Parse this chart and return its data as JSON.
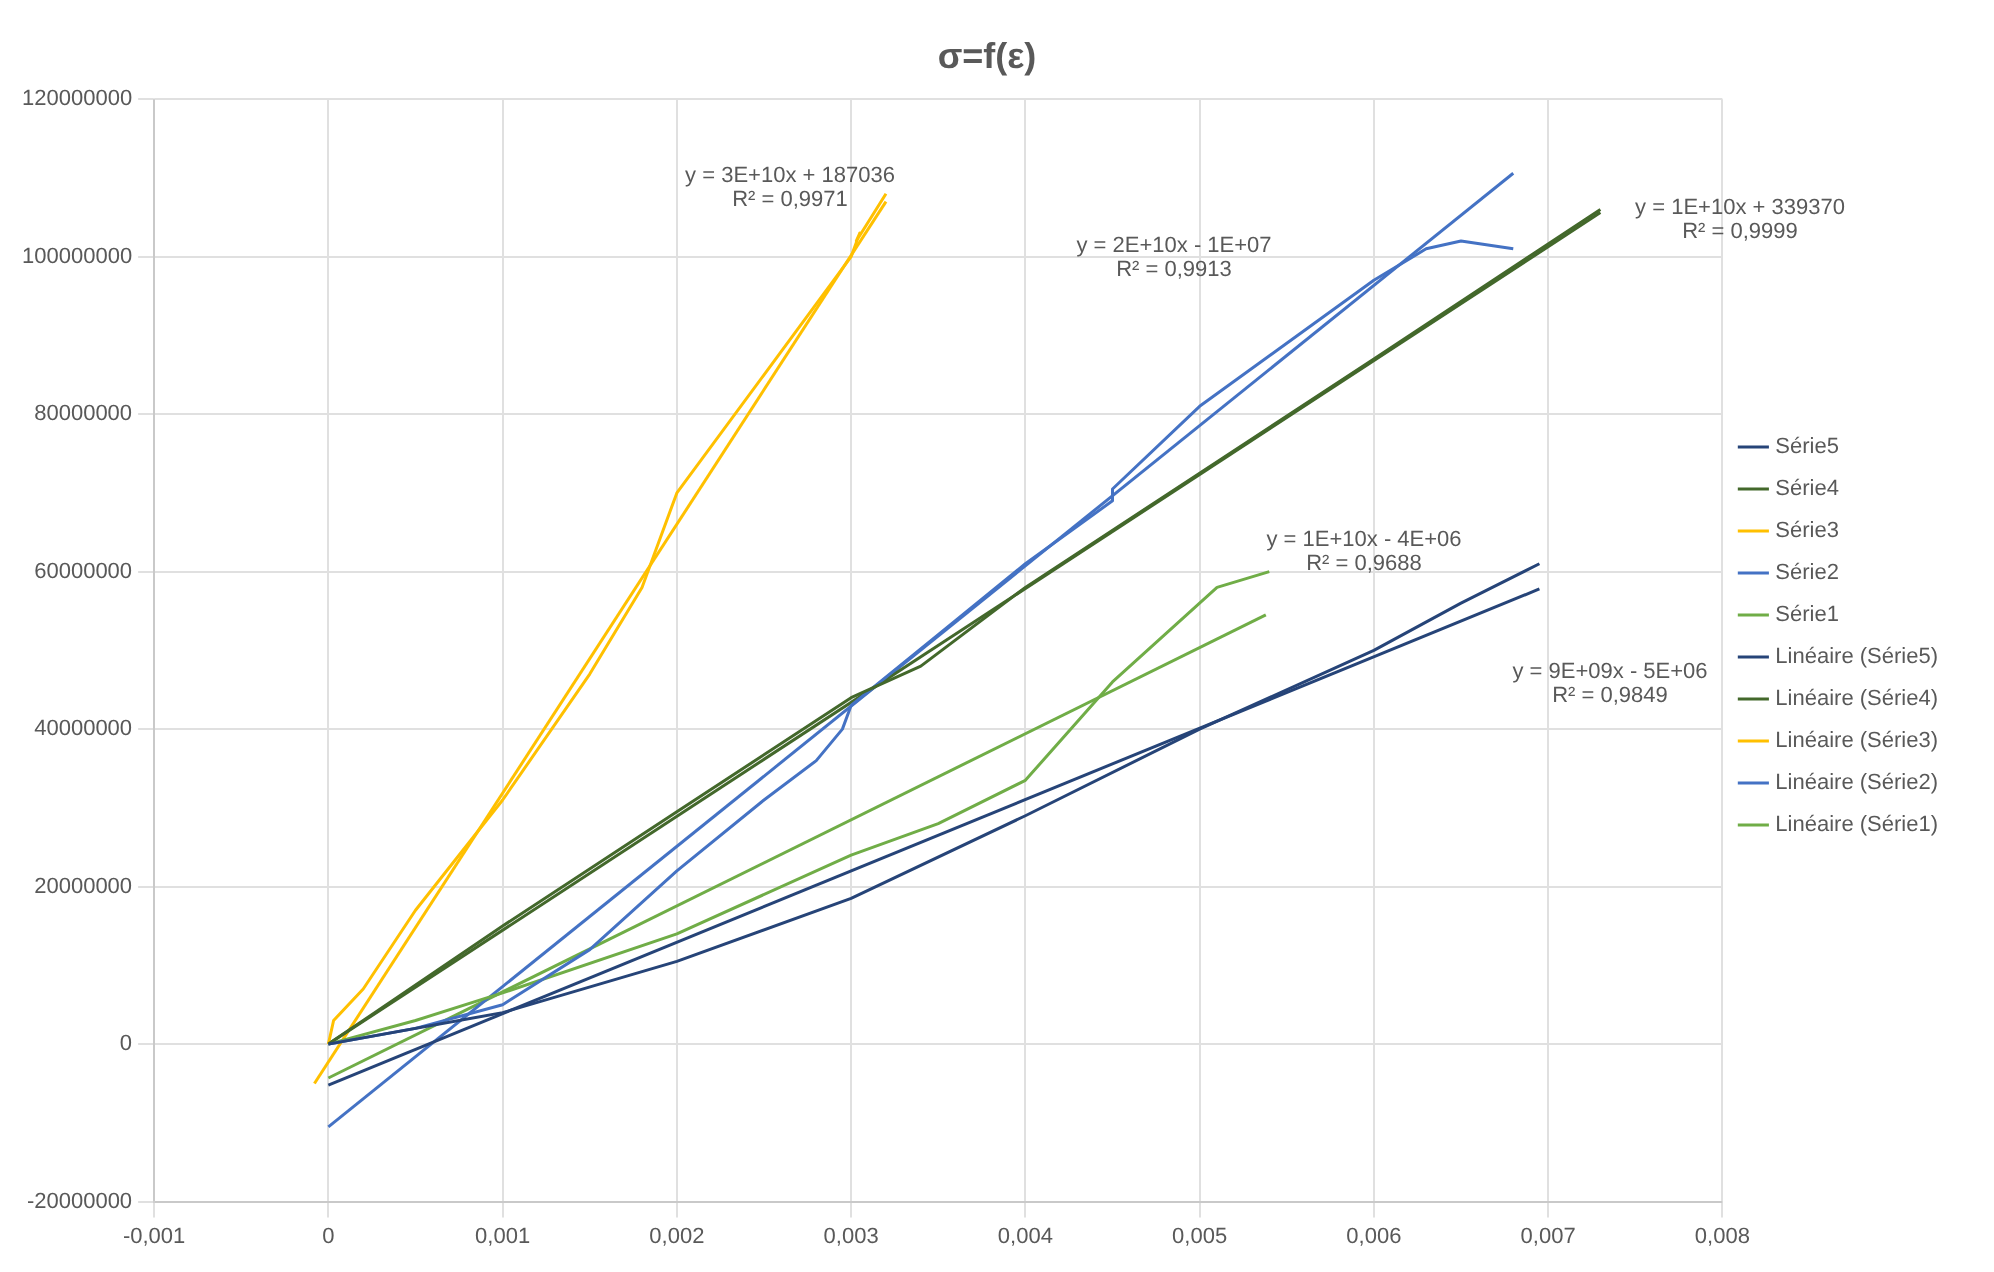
{
  "chart_data": {
    "type": "line",
    "title": "σ=f(ε)",
    "xlim": [
      -0.001,
      0.008
    ],
    "xticks": [
      {
        "value": -0.001,
        "label": "-0,001"
      },
      0,
      {
        "value": 0.001,
        "label": "0,001"
      },
      {
        "value": 0.002,
        "label": "0,002"
      },
      {
        "value": 0.003,
        "label": "0,003"
      },
      {
        "value": 0.004,
        "label": "0,004"
      },
      {
        "value": 0.005,
        "label": "0,005"
      },
      {
        "value": 0.006,
        "label": "0,006"
      },
      {
        "value": 0.007,
        "label": "0,007"
      },
      {
        "value": 0.008,
        "label": "0,008"
      }
    ],
    "ylim": [
      -20000000,
      120000000
    ],
    "yticks": [
      -20000000,
      0,
      20000000,
      40000000,
      60000000,
      80000000,
      100000000,
      120000000
    ],
    "grid": true,
    "legend": "right",
    "marker": "none",
    "line_style": "solid",
    "series": [
      {
        "name": "Série5",
        "color": "#264478",
        "x": [
          0,
          0.001,
          0.002,
          0.003,
          0.004,
          0.005,
          0.006,
          0.0065,
          0.00695
        ],
        "values": [
          0,
          4000000,
          10500000,
          18500000,
          29000000,
          40000000,
          50000000,
          56000000,
          61000000
        ]
      },
      {
        "name": "Série4",
        "color": "#43682b",
        "x": [
          0,
          0.001,
          0.002,
          0.003,
          0.0034,
          0.004,
          0.005,
          0.006,
          0.0073
        ],
        "values": [
          0,
          15000000,
          29500000,
          44000000,
          48000000,
          58000000,
          72500000,
          87000000,
          106000000
        ]
      },
      {
        "name": "Série3",
        "color": "#ffc000",
        "x": [
          0,
          3e-05,
          0.0002,
          0.0005,
          0.001,
          0.0015,
          0.0018,
          0.002,
          0.0025,
          0.003,
          0.00305,
          0.00303,
          0.0032
        ],
        "values": [
          0,
          3000000,
          7000000,
          17000000,
          31000000,
          47000000,
          58000000,
          70000000,
          85000000,
          100000000,
          103000000,
          102000000,
          108000000
        ]
      },
      {
        "name": "Série2",
        "color": "#4472c4",
        "x": [
          0,
          0.0005,
          0.001,
          0.0015,
          0.002,
          0.0025,
          0.0028,
          0.00295,
          0.003,
          0.0035,
          0.004,
          0.0045,
          0.0045,
          0.005,
          0.0055,
          0.006,
          0.0063,
          0.0065,
          0.0068
        ],
        "values": [
          0,
          2000000,
          5000000,
          12000000,
          22000000,
          31000000,
          36000000,
          40000000,
          43000000,
          52000000,
          61000000,
          69000000,
          70500000,
          81000000,
          89000000,
          97000000,
          101000000,
          102000000,
          101000000
        ]
      },
      {
        "name": "Série1",
        "color": "#70ad47",
        "x": [
          0,
          0.0005,
          0.001,
          0.002,
          0.003,
          0.0035,
          0.004,
          0.0045,
          0.005,
          0.0051,
          0.0054
        ],
        "values": [
          0,
          3000000,
          6500000,
          14000000,
          24000000,
          28000000,
          33500000,
          46000000,
          56000000,
          58000000,
          60000000
        ]
      },
      {
        "name": "Linéaire (Série5)",
        "color": "#264478",
        "x": [
          0,
          0.00695
        ],
        "values": [
          -5200000,
          57800000
        ]
      },
      {
        "name": "Linéaire (Série4)",
        "color": "#43682b",
        "x": [
          0,
          0.0073
        ],
        "values": [
          0,
          105600000
        ]
      },
      {
        "name": "Linéaire (Série3)",
        "color": "#ffc000",
        "x": [
          -8e-05,
          0.0032
        ],
        "values": [
          -5000000,
          107000000
        ]
      },
      {
        "name": "Linéaire (Série2)",
        "color": "#4472c4",
        "x": [
          0,
          0.0068
        ],
        "values": [
          -10500000,
          110600000
        ]
      },
      {
        "name": "Linéaire (Série1)",
        "color": "#70ad47",
        "x": [
          0,
          0.00538
        ],
        "values": [
          -4300000,
          54500000
        ]
      }
    ],
    "annotations": [
      "y = 3E+10x + 187036",
      "R² = 0,9971",
      "y = 2E+10x - 1E+07",
      "R² = 0,9913",
      "y = 1E+10x + 339370",
      "R² = 0,9999",
      "y = 1E+10x - 4E+06",
      "R² = 0,9688",
      "y = 9E+09x - 5E+06",
      "R² = 0,9849"
    ]
  }
}
